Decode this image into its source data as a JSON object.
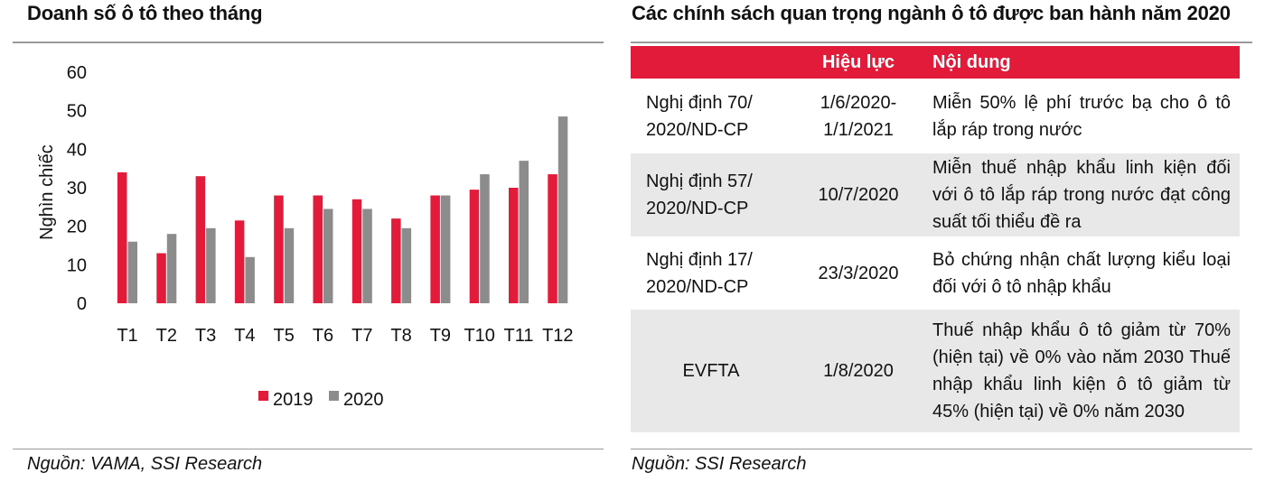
{
  "left_panel": {
    "title": "Doanh số ô tô theo tháng",
    "source": "Nguồn: VAMA, SSI Research"
  },
  "right_panel": {
    "title": "Các chính sách quan trọng ngành ô tô được ban hành năm 2020",
    "source": "Nguồn: SSI Research",
    "table": {
      "headers": [
        "",
        "Hiệu lực",
        "Nội dung"
      ],
      "rows": [
        {
          "policy": "Nghị định 70/ 2020/ND-CP",
          "effective": "1/6/2020- 1/1/2021",
          "content": "Miễn 50% lệ phí trước bạ cho ô tô lắp ráp trong nước"
        },
        {
          "policy": "Nghị định 57/ 2020/ND-CP",
          "effective": "10/7/2020",
          "content": "Miễn thuế nhập khẩu linh kiện đối với ô tô lắp ráp trong nước đạt công suất tối thiểu đề ra"
        },
        {
          "policy": "Nghị định 17/ 2020/ND-CP",
          "effective": "23/3/2020",
          "content": "Bỏ chứng nhận chất lượng kiểu loại đối với ô tô nhập khẩu"
        },
        {
          "policy": "EVFTA",
          "effective": "1/8/2020",
          "content": "Thuế nhập khẩu ô tô giảm từ 70% (hiện tại) về 0% vào năm 2030 Thuế nhập khẩu linh kiện ô tô giảm từ 45% (hiện tại) về 0% năm 2030"
        }
      ]
    }
  },
  "chart_data": {
    "type": "bar",
    "title": "Doanh số ô tô theo tháng",
    "ylabel": "Nghìn chiếc",
    "xlabel": "",
    "ylim": [
      0,
      60
    ],
    "yticks": [
      0,
      10,
      20,
      30,
      40,
      50,
      60
    ],
    "categories": [
      "T1",
      "T2",
      "T3",
      "T4",
      "T5",
      "T6",
      "T7",
      "T8",
      "T9",
      "T10",
      "T11",
      "T12"
    ],
    "series": [
      {
        "name": "2019",
        "color": "#e31b3a",
        "values": [
          34,
          13,
          33,
          21.5,
          28,
          28,
          27,
          22,
          28,
          29.5,
          30,
          33.5
        ]
      },
      {
        "name": "2020",
        "color": "#8c8c8c",
        "values": [
          16,
          18,
          19.5,
          12,
          19.5,
          24.5,
          24.5,
          19.5,
          28,
          33.5,
          37,
          48.5
        ]
      }
    ],
    "grid": false,
    "legend_position": "bottom"
  }
}
